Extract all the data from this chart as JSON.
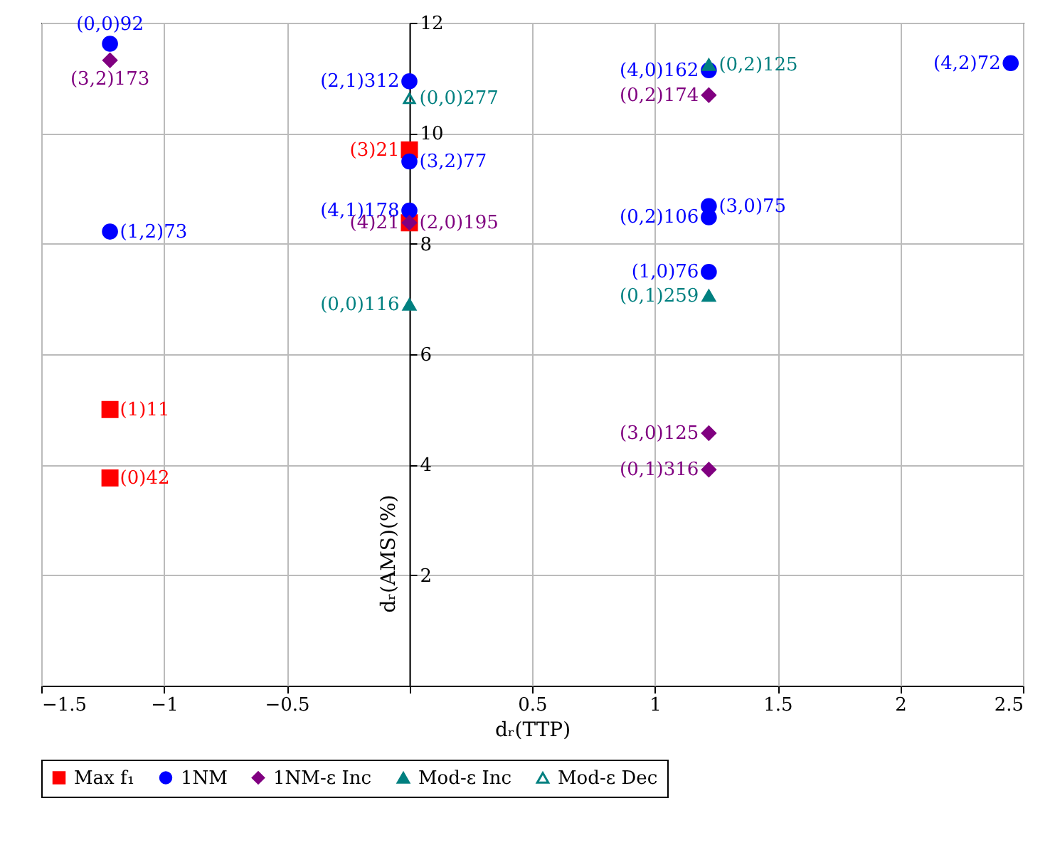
{
  "chart_data": {
    "type": "scatter",
    "xlabel": "dᵣ(TTP)",
    "ylabel": "dᵣ(AMS)(%)",
    "xlim": [
      -1.5,
      2.5
    ],
    "xticks": [
      -1.5,
      -1,
      -0.5,
      {
        "value": 0,
        "label": null
      },
      0.5,
      1,
      1.5,
      2,
      2.5
    ],
    "ylim": [
      0,
      12
    ],
    "yticks": [
      2,
      4,
      6,
      8,
      10,
      12
    ],
    "grid": true,
    "legend": "bottom",
    "series": [
      {
        "name": "Max f₁",
        "color": "#ff0000",
        "marker": "square",
        "x": [
          -1.22,
          -1.22,
          0,
          0
        ],
        "values": [
          3.76,
          5.0,
          9.7,
          8.38
        ]
      },
      {
        "name": "1NM",
        "color": "#0000ff",
        "marker": "circle",
        "x": [
          -1.22,
          -1.22,
          0,
          0,
          0,
          1.22,
          1.22,
          1.22,
          1.22,
          2.45
        ],
        "values": [
          11.62,
          8.22,
          10.94,
          9.49,
          8.6,
          11.14,
          8.48,
          8.68,
          7.49,
          11.27
        ]
      },
      {
        "name": "1NM-ε Inc",
        "color": "#800080",
        "marker": "diamond",
        "x": [
          -1.22,
          0,
          1.22,
          1.22,
          1.22
        ],
        "values": [
          11.32,
          8.38,
          10.69,
          4.57,
          3.91
        ]
      },
      {
        "name": "Mod-ε Inc",
        "color": "#008080",
        "marker": "triangle",
        "x": [
          1.22,
          1.22,
          0
        ],
        "values": [
          11.24,
          7.06,
          6.9
        ]
      },
      {
        "name": "Mod-ε Dec",
        "color": "#008080",
        "marker": "triangle",
        "x": [
          0
        ],
        "values": [
          10.63
        ]
      }
    ],
    "annotations": [
      {
        "text": "(0)42",
        "x": -1.22,
        "y": 3.76
      },
      {
        "text": "(1)11",
        "x": -1.22,
        "y": 5.0
      },
      {
        "text": "(3)21",
        "x": 0,
        "y": 9.7
      },
      {
        "text": "(4)21",
        "x": 0,
        "y": 8.38
      },
      {
        "text": "(0,0)92",
        "x": -1.22,
        "y": 11.62
      },
      {
        "text": "(1,2)73",
        "x": -1.22,
        "y": 8.22
      },
      {
        "text": "(2,1)312",
        "x": 0,
        "y": 10.94
      },
      {
        "text": "(3,2)77",
        "x": 0,
        "y": 9.49
      },
      {
        "text": "(4,1)178",
        "x": 0,
        "y": 8.6
      },
      {
        "text": "(4,0)162",
        "x": 1.22,
        "y": 11.14
      },
      {
        "text": "(0,2)106",
        "x": 1.22,
        "y": 8.48
      },
      {
        "text": "(3,0)75",
        "x": 1.22,
        "y": 8.68
      },
      {
        "text": "(1,0)76",
        "x": 1.22,
        "y": 7.49
      },
      {
        "text": "(4,2)72",
        "x": 2.45,
        "y": 11.27
      },
      {
        "text": "(3,2)173",
        "x": -1.22,
        "y": 11.32
      },
      {
        "text": "(2,0)195",
        "x": 0,
        "y": 8.38
      },
      {
        "text": "(0,2)174",
        "x": 1.22,
        "y": 10.69
      },
      {
        "text": "(3,0)125",
        "x": 1.22,
        "y": 4.57
      },
      {
        "text": "(0,1)316",
        "x": 1.22,
        "y": 3.91
      },
      {
        "text": "(0,2)125",
        "x": 1.22,
        "y": 11.24
      },
      {
        "text": "(0,1)259",
        "x": 1.22,
        "y": 7.06
      },
      {
        "text": "(0,0)116",
        "x": 0,
        "y": 6.9
      },
      {
        "text": "(0,0)277",
        "x": 0,
        "y": 10.63
      }
    ]
  }
}
